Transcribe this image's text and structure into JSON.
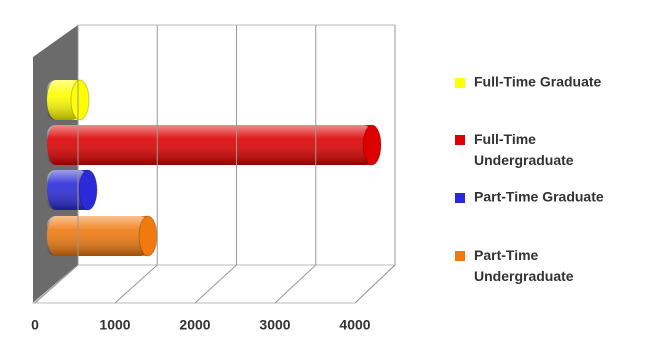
{
  "chart_data": {
    "type": "bar",
    "orientation": "horizontal",
    "style": "3d-cylinder",
    "categories": [
      "Full-Time Graduate",
      "Full-Time Undergraduate",
      "Part-Time Graduate",
      "Part-Time Undergraduate"
    ],
    "values": [
      300,
      3950,
      400,
      1150
    ],
    "colors": [
      "#ffff00",
      "#dd0000",
      "#2a2ad8",
      "#f07a10"
    ],
    "xlim": [
      0,
      4000
    ],
    "xticks": [
      0,
      1000,
      2000,
      3000,
      4000
    ],
    "grid": true,
    "legend": "right"
  }
}
